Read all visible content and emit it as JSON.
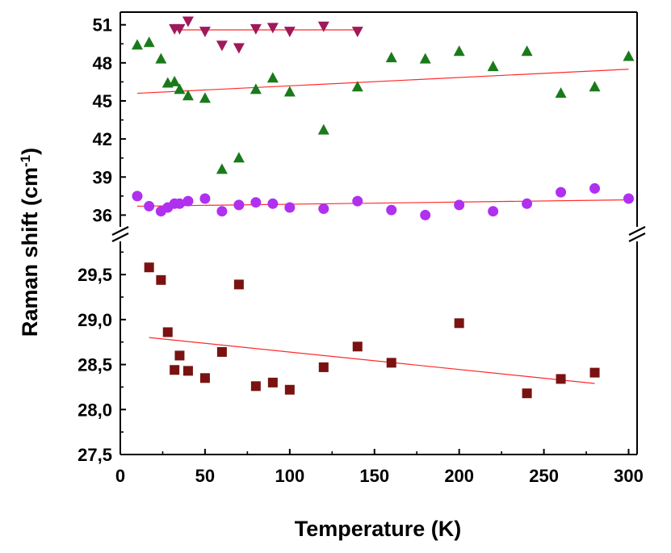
{
  "chart_data": {
    "type": "scatter",
    "xlabel": "Temperature (K)",
    "ylabel_main": "Raman shift (cm",
    "ylabel_sup": "-1",
    "ylabel_close": ")",
    "xlim": [
      0,
      305
    ],
    "x_ticks": [
      "0",
      "50",
      "100",
      "150",
      "200",
      "250",
      "300"
    ],
    "y_axis_broken": true,
    "upper_panel": {
      "ylim": [
        34.5,
        52.0
      ],
      "y_ticks": [
        "36",
        "39",
        "42",
        "45",
        "48",
        "51"
      ]
    },
    "lower_panel": {
      "ylim": [
        27.5,
        29.95
      ],
      "y_ticks": [
        "27,5",
        "28,0",
        "28,5",
        "29,0",
        "29,5"
      ]
    },
    "fit_line_color": "#ff2a2a",
    "series": [
      {
        "panel": "upper",
        "marker": "triangle-down",
        "color": "#a0195a",
        "x": [
          32,
          35,
          40,
          50,
          60,
          70,
          80,
          90,
          100,
          120,
          140
        ],
        "y": [
          50.7,
          50.7,
          51.3,
          50.5,
          49.4,
          49.2,
          50.7,
          50.8,
          50.5,
          50.9,
          50.5
        ],
        "fit": [
          [
            32,
            50.6
          ],
          [
            140,
            50.6
          ]
        ]
      },
      {
        "panel": "upper",
        "marker": "triangle-up",
        "color": "#1a7a1a",
        "x": [
          10,
          17,
          24,
          28,
          32,
          35,
          40,
          50,
          60,
          70,
          80,
          90,
          100,
          120,
          140,
          160,
          180,
          200,
          220,
          240,
          260,
          280,
          300
        ],
        "y": [
          49.4,
          49.6,
          48.3,
          46.4,
          46.5,
          45.9,
          45.4,
          45.2,
          39.6,
          40.5,
          45.9,
          46.8,
          45.7,
          42.7,
          46.1,
          48.4,
          48.3,
          48.9,
          47.7,
          48.9,
          45.6,
          46.1,
          48.5
        ],
        "fit": [
          [
            10,
            45.6
          ],
          [
            300,
            47.5
          ]
        ]
      },
      {
        "panel": "upper",
        "marker": "circle",
        "color": "#b030f0",
        "x": [
          10,
          17,
          24,
          28,
          32,
          35,
          40,
          50,
          60,
          70,
          80,
          90,
          100,
          120,
          140,
          160,
          180,
          200,
          220,
          240,
          260,
          280,
          300
        ],
        "y": [
          37.5,
          36.7,
          36.3,
          36.6,
          36.9,
          36.9,
          37.1,
          37.3,
          36.3,
          36.8,
          37.0,
          36.9,
          36.6,
          36.5,
          37.1,
          36.4,
          36.0,
          36.8,
          36.3,
          36.9,
          37.8,
          38.1,
          37.3
        ],
        "fit": [
          [
            10,
            36.7
          ],
          [
            300,
            37.2
          ]
        ]
      },
      {
        "panel": "lower",
        "marker": "square",
        "color": "#7a1212",
        "x": [
          17,
          24,
          28,
          32,
          35,
          40,
          50,
          60,
          70,
          80,
          90,
          100,
          120,
          140,
          160,
          200,
          240,
          260,
          280
        ],
        "y": [
          29.58,
          29.44,
          28.86,
          28.44,
          28.6,
          28.43,
          28.35,
          28.64,
          29.39,
          28.26,
          28.3,
          28.22,
          28.47,
          28.7,
          28.52,
          28.96,
          28.18,
          28.34,
          28.41
        ],
        "fit": [
          [
            17,
            28.8
          ],
          [
            280,
            28.29
          ]
        ]
      }
    ]
  }
}
